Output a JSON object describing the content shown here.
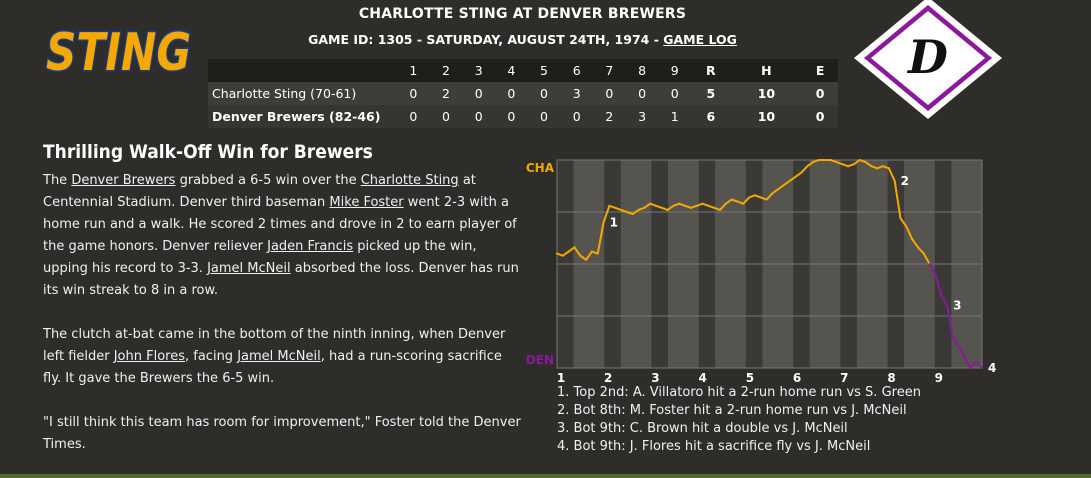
{
  "header": {
    "title": "CHARLOTTE STING AT DENVER BREWERS",
    "subtitle_prefix": "GAME ID: 1305 - SATURDAY, AUGUST 24TH, 1974 - ",
    "game_log_link": "GAME LOG"
  },
  "logos": {
    "away_text": "STING",
    "home_letter": "D"
  },
  "linescore": {
    "columns": [
      "1",
      "2",
      "3",
      "4",
      "5",
      "6",
      "7",
      "8",
      "9",
      "R",
      "H",
      "E"
    ],
    "rows": [
      {
        "team": "Charlotte Sting (70-61)",
        "cells": [
          "0",
          "2",
          "0",
          "0",
          "0",
          "3",
          "0",
          "0",
          "0",
          "5",
          "10",
          "0"
        ]
      },
      {
        "team": "Denver Brewers (82-46)",
        "cells": [
          "0",
          "0",
          "0",
          "0",
          "0",
          "0",
          "2",
          "3",
          "1",
          "6",
          "10",
          "0"
        ]
      }
    ]
  },
  "article": {
    "headline": "Thrilling Walk-Off Win for Brewers",
    "p1": {
      "t1": "The ",
      "l1": "Denver Brewers",
      "t2": " grabbed a 6-5 win over the ",
      "l2": "Charlotte Sting",
      "t3": " at Centennial Stadium. Denver third baseman ",
      "l3": "Mike Foster",
      "t4": " went 2-3 with a home run and a walk. He scored 2 times and drove in 2 to earn player of the game honors. Denver reliever ",
      "l4": "Jaden Francis",
      "t5": " picked up the win, upping his record to 3-3. ",
      "l5": "Jamel McNeil",
      "t6": " absorbed the loss. Denver has run its win streak to 8 in a row."
    },
    "p2": {
      "t1": "The clutch at-bat came in the bottom of the ninth inning, when Denver left fielder ",
      "l1": "John Flores",
      "t2": ", facing ",
      "l2": "Jamel McNeil",
      "t3": ", had a run-scoring sacrifice fly. It gave the Brewers the 6-5 win."
    },
    "p3": "\"I still think this team has room for improvement,\" Foster told the Denver Times."
  },
  "chart_data": {
    "type": "line",
    "top_label": "CHA",
    "bottom_label": "DEN",
    "x_ticks": [
      "1",
      "2",
      "3",
      "4",
      "5",
      "6",
      "7",
      "8",
      "9"
    ],
    "colors": {
      "away": "#f5a800",
      "home": "#8a1a9b"
    },
    "series": [
      {
        "values": [
          0.55,
          0.54,
          0.56,
          0.58,
          0.54,
          0.52,
          0.56,
          0.55,
          0.7,
          0.78,
          0.77,
          0.76,
          0.75,
          0.74,
          0.76,
          0.77,
          0.79,
          0.78,
          0.77,
          0.76,
          0.78,
          0.79,
          0.78,
          0.77,
          0.78,
          0.79,
          0.78,
          0.77,
          0.76,
          0.79,
          0.81,
          0.8,
          0.79,
          0.82,
          0.83,
          0.82,
          0.81,
          0.84,
          0.86,
          0.88,
          0.9,
          0.92,
          0.94,
          0.97,
          0.99,
          1.0,
          1.0,
          1.0,
          0.99,
          0.98,
          0.97,
          0.98,
          1.0,
          0.99,
          0.97,
          0.96,
          0.97,
          0.96,
          0.9,
          0.72,
          0.68,
          0.62,
          0.58,
          0.55,
          0.5,
          0.45,
          0.35,
          0.3,
          0.15,
          0.1,
          0.05,
          0.0,
          0.03,
          0.0
        ]
      }
    ],
    "annotations": [
      {
        "label": "1",
        "index": 8
      },
      {
        "label": "2",
        "index": 58
      },
      {
        "label": "3",
        "index": 67
      },
      {
        "label": "4",
        "index": 73
      }
    ]
  },
  "events": [
    "1. Top 2nd: A. Villatoro hit a 2-run home run vs S. Green",
    "2. Bot 8th: M. Foster hit a 2-run home run vs J. McNeil",
    "3. Bot 9th: C. Brown hit a double vs J. McNeil",
    "4. Bot 9th: J. Flores hit a sacrifice fly vs J. McNeil"
  ]
}
